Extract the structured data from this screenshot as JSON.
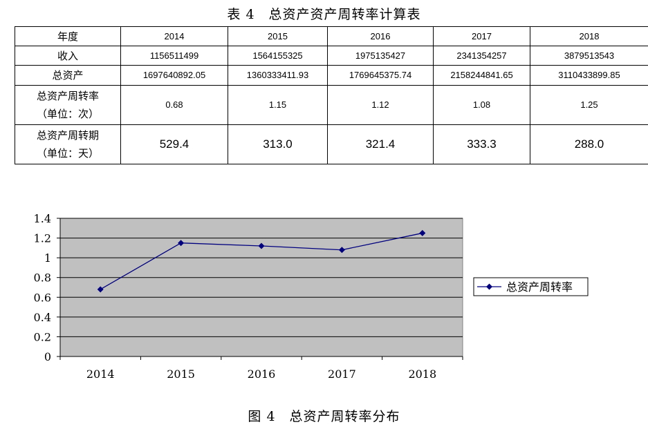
{
  "table": {
    "caption": "表 4　总资产资产周转率计算表",
    "header_label": "年度",
    "years": [
      "2014",
      "2015",
      "2016",
      "2017",
      "2018"
    ],
    "rows": [
      {
        "label": "收入",
        "label_line2": "",
        "values": [
          "1156511499",
          "1564155325",
          "1975135427",
          "2341354257",
          "3879513543"
        ]
      },
      {
        "label": "总资产",
        "label_line2": "",
        "values": [
          "1697640892.05",
          "1360333411.93",
          "1769645375.74",
          "2158244841.65",
          "3110433899.85"
        ]
      },
      {
        "label": "总资产周转率",
        "label_line2": "（单位：次）",
        "values": [
          "0.68",
          "1.15",
          "1.12",
          "1.08",
          "1.25"
        ]
      },
      {
        "label": "总资产周转期",
        "label_line2": "（单位：天）",
        "values": [
          "529.4",
          "313.0",
          "321.4",
          "333.3",
          "288.0"
        ]
      }
    ]
  },
  "chart_data": {
    "type": "line",
    "categories": [
      "2014",
      "2015",
      "2016",
      "2017",
      "2018"
    ],
    "series": [
      {
        "name": "总资产周转率",
        "values": [
          0.68,
          1.15,
          1.12,
          1.08,
          1.25
        ],
        "color": "#00007f"
      }
    ],
    "y_ticks": [
      "0",
      "0.2",
      "0.4",
      "0.6",
      "0.8",
      "1",
      "1.2",
      "1.4"
    ],
    "ylim": [
      0,
      1.4
    ],
    "grid": true,
    "plot_background": "#c0c0c0",
    "legend_position": "right"
  },
  "figure": {
    "caption": "图 4　总资产周转率分布"
  }
}
